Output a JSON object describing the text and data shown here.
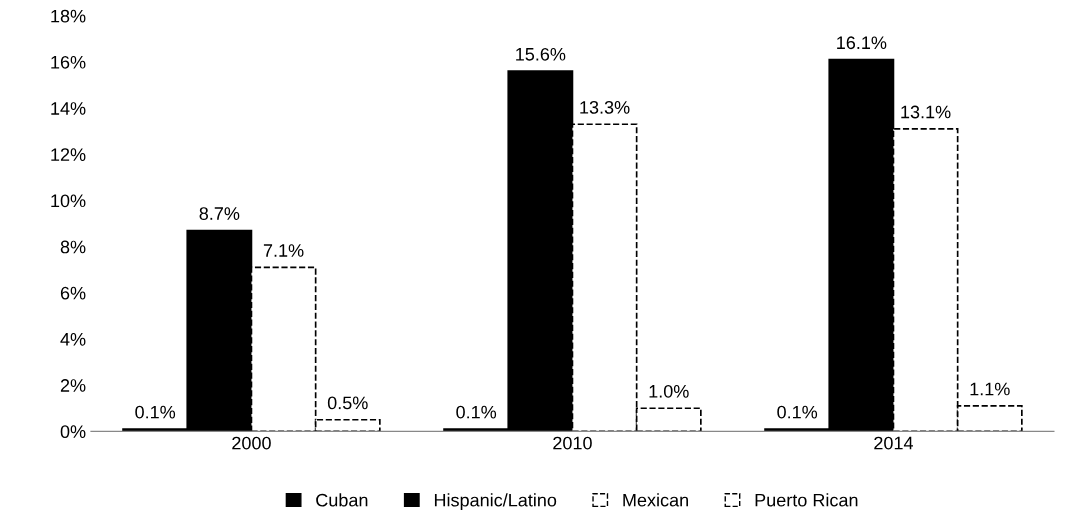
{
  "chart_data": {
    "type": "bar",
    "categories": [
      "2000",
      "2010",
      "2014"
    ],
    "series": [
      {
        "name": "Cuban",
        "color": "#000000",
        "values": [
          0.1,
          0.1,
          0.1
        ],
        "value_labels": [
          "0.1%",
          "0.1%",
          "0.1%"
        ]
      },
      {
        "name": "Hispanic/Latino",
        "color": "#000000",
        "values": [
          8.7,
          15.6,
          16.1
        ],
        "value_labels": [
          "8.7%",
          "15.6%",
          "16.1%"
        ]
      },
      {
        "name": "Mexican",
        "color": "#ffffff",
        "values": [
          7.1,
          13.3,
          13.1
        ],
        "value_labels": [
          "7.1%",
          "13.3%",
          "13.1%"
        ]
      },
      {
        "name": "Puerto Rican",
        "color": "#ffffff",
        "values": [
          0.5,
          1.0,
          1.1
        ],
        "value_labels": [
          "0.5%",
          "1.0%",
          "1.1%"
        ]
      }
    ],
    "ylim": [
      0,
      18
    ],
    "yticks": [
      {
        "value": 0,
        "label": "0%"
      },
      {
        "value": 2,
        "label": "2%"
      },
      {
        "value": 4,
        "label": "4%"
      },
      {
        "value": 6,
        "label": "6%"
      },
      {
        "value": 8,
        "label": "8%"
      },
      {
        "value": 10,
        "label": "10%"
      },
      {
        "value": 12,
        "label": "12%"
      },
      {
        "value": 14,
        "label": "14%"
      },
      {
        "value": 16,
        "label": "16%"
      },
      {
        "value": 18,
        "label": "18%"
      }
    ],
    "grid": false,
    "legend": "bottom"
  }
}
